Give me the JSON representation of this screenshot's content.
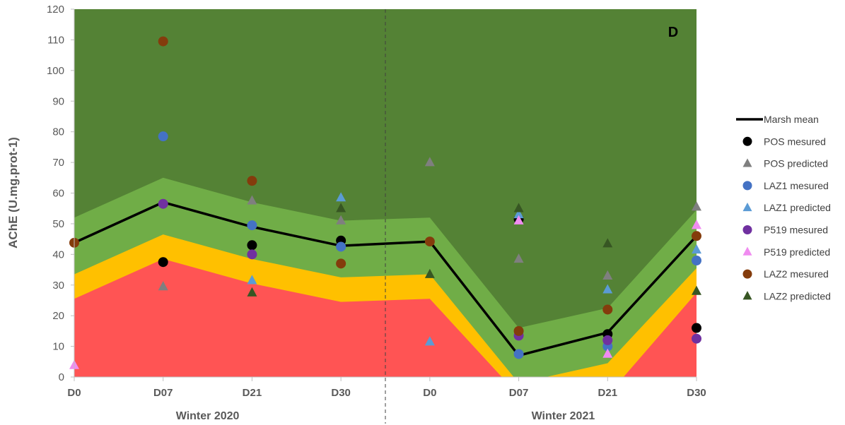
{
  "chart_data": {
    "type": "scatter",
    "panel_label": "D",
    "ylabel": "AChE (U.mg.prot-1)",
    "ylim": [
      0,
      120
    ],
    "yticks": [
      0,
      10,
      20,
      30,
      40,
      50,
      60,
      70,
      80,
      90,
      100,
      110,
      120
    ],
    "categories": [
      "D0",
      "D07",
      "D21",
      "D30",
      "D0",
      "D07",
      "D21",
      "D30"
    ],
    "groups": [
      {
        "label": "Winter 2020",
        "from": 0,
        "to": 3
      },
      {
        "label": "Winter 2021",
        "from": 4,
        "to": 7
      }
    ],
    "bands": {
      "colors": {
        "red": "#ff5454",
        "yellow": "#ffc000",
        "light_green": "#70ad47",
        "dark_green": "#548235"
      },
      "red_upper": [
        25.5,
        38.5,
        30.5,
        24.5,
        25.5,
        -6,
        -6,
        27.5
      ],
      "yellow_upper": [
        33.5,
        46.5,
        38.5,
        32.5,
        33.5,
        -2,
        4.5,
        35.5
      ],
      "light_green_upper": [
        52,
        65,
        57,
        51,
        52,
        16,
        22.5,
        54.5
      ]
    },
    "series": [
      {
        "name": "Marsh mean",
        "kind": "line",
        "color": "#000000",
        "values": [
          43.8,
          57,
          49,
          42.8,
          44.2,
          7,
          14.5,
          46
        ]
      },
      {
        "name": "POS mesured",
        "kind": "circle",
        "color": "#000000",
        "values": [
          null,
          37.5,
          43,
          44.5,
          null,
          51.5,
          14,
          16
        ]
      },
      {
        "name": "POS predicted",
        "kind": "triangle",
        "color": "#7f7f7f",
        "values": [
          null,
          29.5,
          57.5,
          51,
          70,
          38.5,
          33,
          55.5
        ]
      },
      {
        "name": "LAZ1 mesured",
        "kind": "circle",
        "color": "#4472c4",
        "values": [
          null,
          78.5,
          49.5,
          42.5,
          null,
          7.5,
          10,
          38
        ]
      },
      {
        "name": "LAZ1 predicted",
        "kind": "triangle",
        "color": "#5b9bd5",
        "values": [
          null,
          null,
          31.5,
          58.5,
          11.5,
          53,
          28.5,
          41.5
        ]
      },
      {
        "name": "P519 mesured",
        "kind": "circle",
        "color": "#7030a0",
        "values": [
          null,
          56.5,
          40,
          null,
          null,
          13.5,
          12,
          12.5
        ]
      },
      {
        "name": "P519 predicted",
        "kind": "triangle",
        "color": "#f08cf0",
        "values": [
          3.8,
          null,
          null,
          null,
          null,
          51,
          7.5,
          49.5
        ]
      },
      {
        "name": "LAZ2 mesured",
        "kind": "circle",
        "color": "#843c0c",
        "values": [
          43.8,
          109.5,
          64,
          37,
          44.2,
          15,
          22,
          46
        ]
      },
      {
        "name": "LAZ2 predicted",
        "kind": "triangle",
        "color": "#375623",
        "values": [
          null,
          null,
          27.5,
          55,
          33.5,
          55,
          43.5,
          28
        ]
      }
    ],
    "grid": false,
    "legend": "right",
    "divider": "dashed line between the two winters"
  }
}
